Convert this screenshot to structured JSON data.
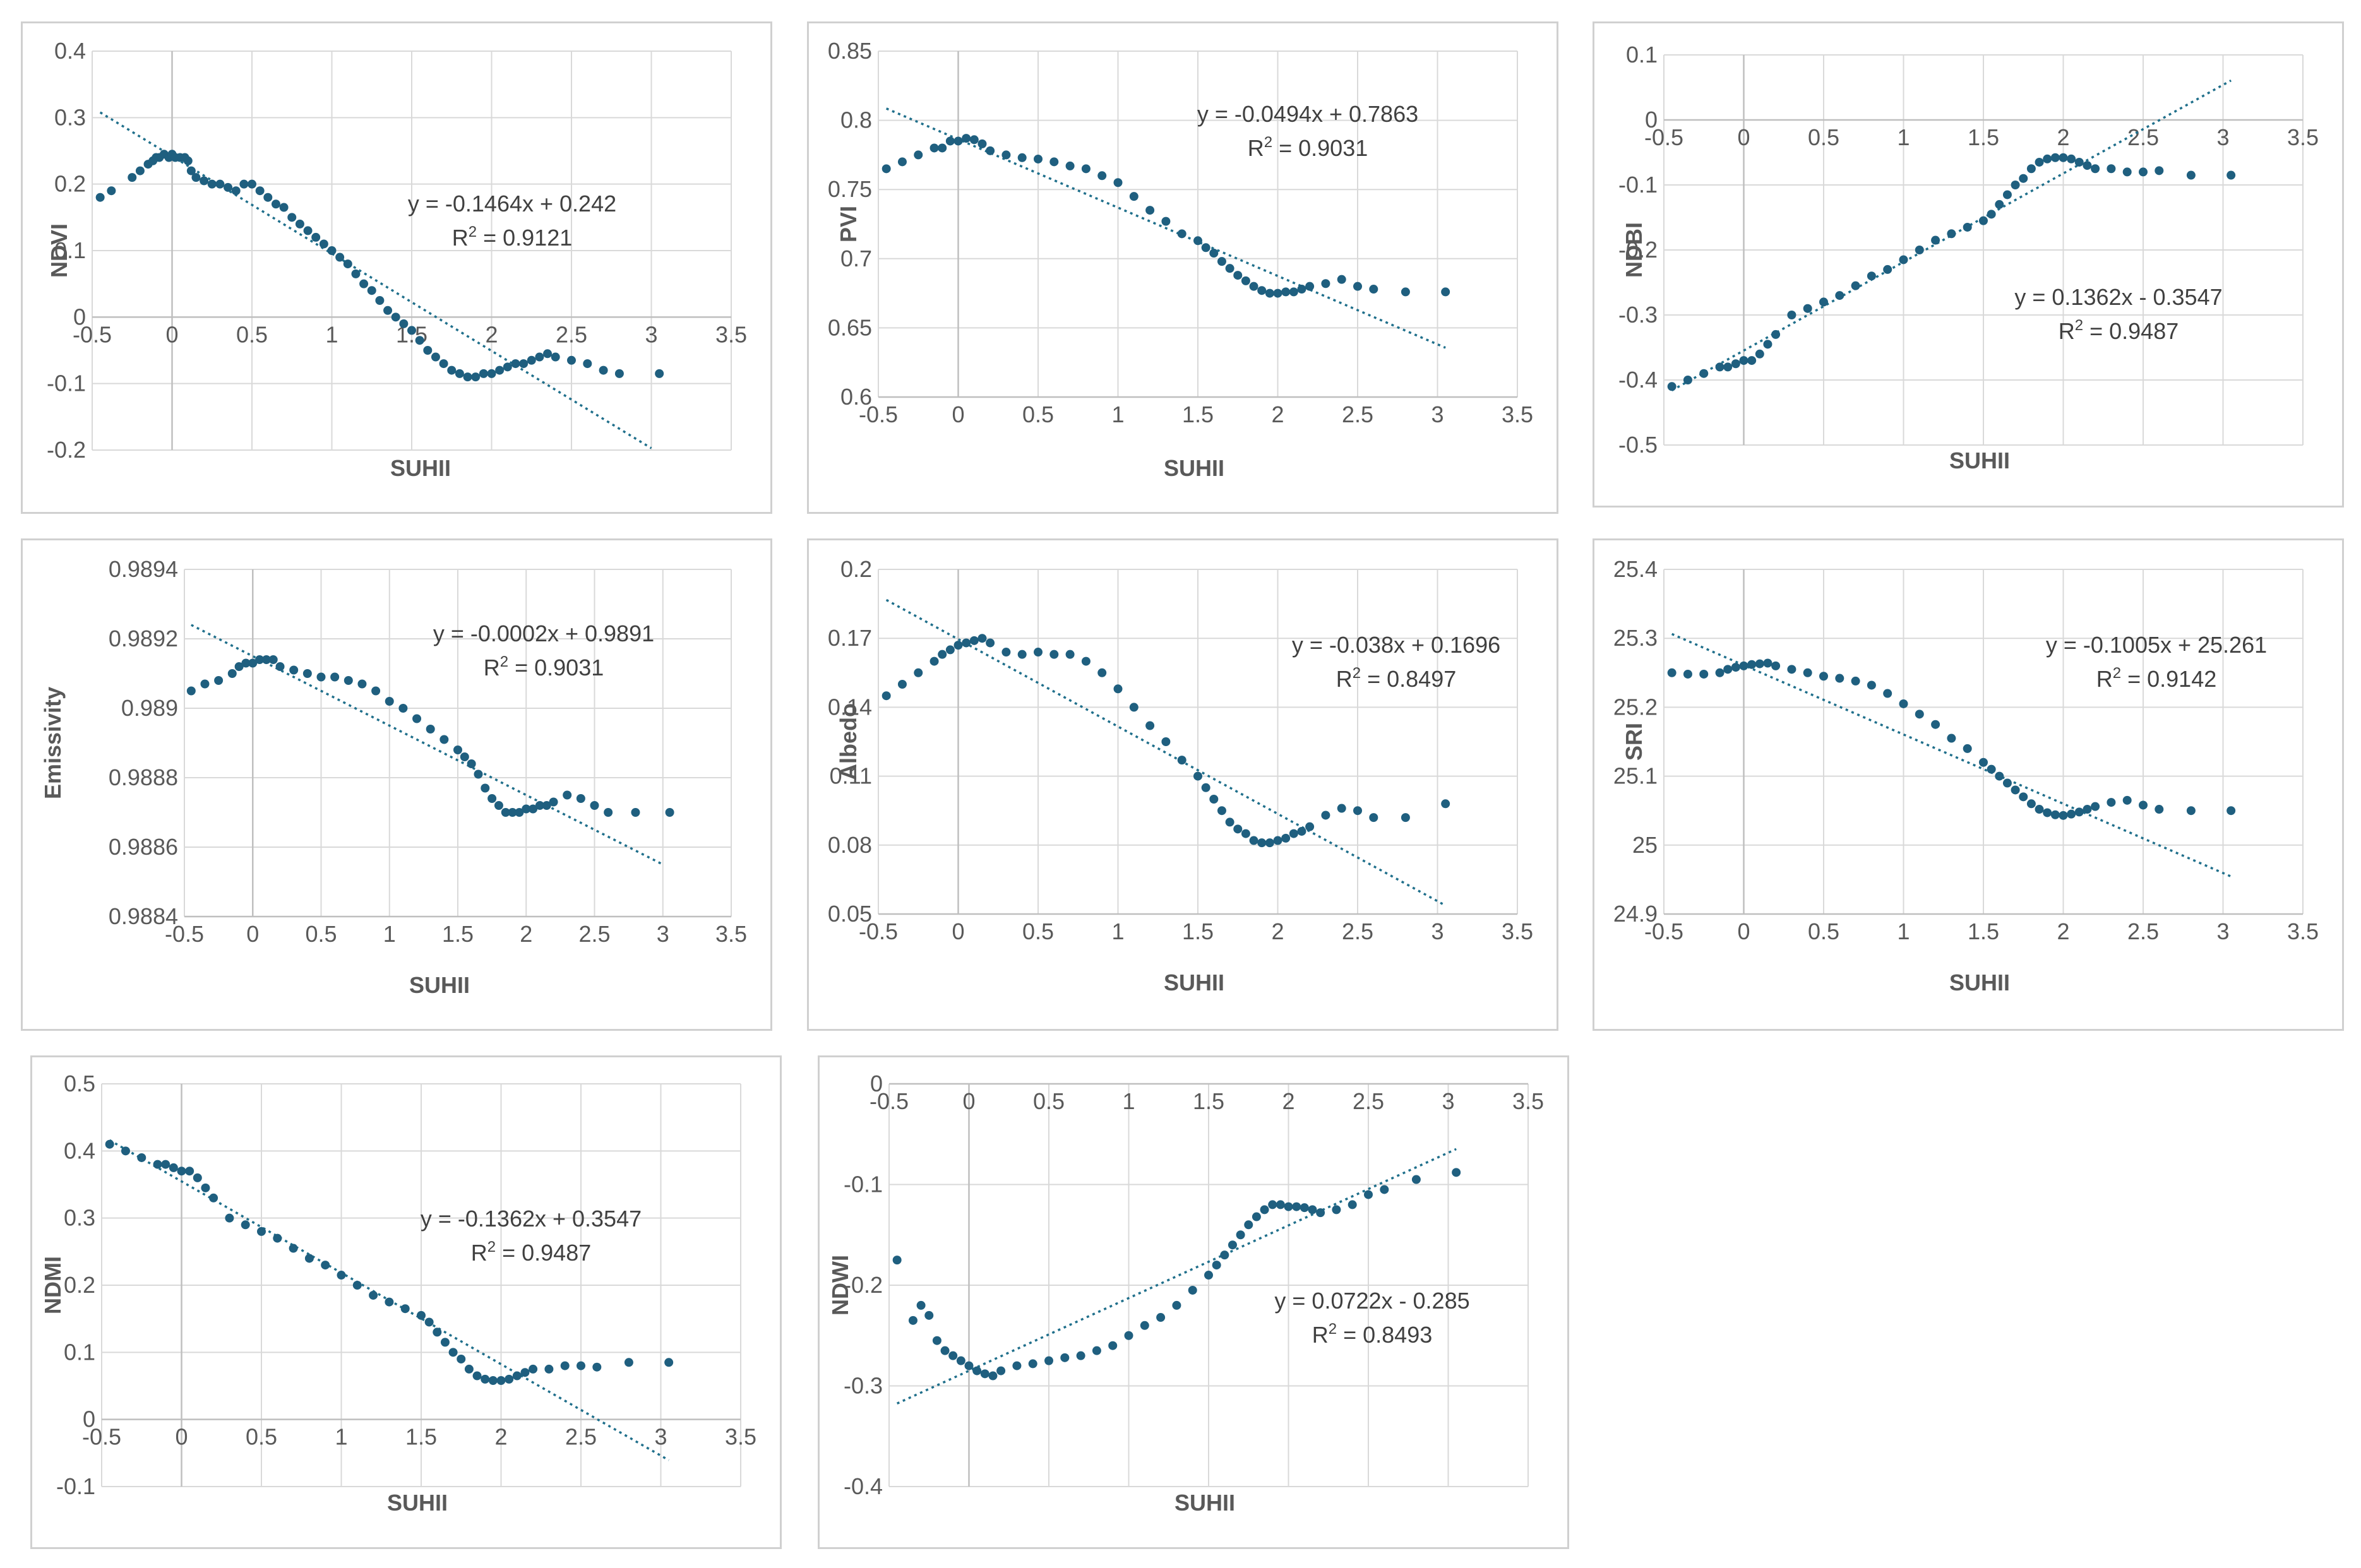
{
  "chart_data": [
    {
      "id": "ndvi",
      "type": "scatter",
      "xlabel": "SUHII",
      "ylabel": "NDVI",
      "xlim": [
        -0.5,
        3.5
      ],
      "xticks": [
        "-0.5",
        "0",
        "0.5",
        "1",
        "1.5",
        "2",
        "2.5",
        "3",
        "3.5"
      ],
      "ylim": [
        -0.2,
        0.4
      ],
      "yticks": [
        "-0.2",
        "-0.1",
        "0",
        "0.1",
        "0.2",
        "0.3",
        "0.4"
      ],
      "grid": true,
      "trendline": {
        "slope": -0.1464,
        "intercept": 0.242,
        "x_start": -0.45,
        "x_end": 3.0
      },
      "equation": "y = -0.1464x + 0.242",
      "r2_label": "R",
      "r2_value": " = 0.9121",
      "x": [
        -0.45,
        -0.38,
        -0.25,
        -0.2,
        -0.15,
        -0.12,
        -0.1,
        -0.08,
        -0.05,
        -0.02,
        0.0,
        0.02,
        0.05,
        0.08,
        0.1,
        0.12,
        0.15,
        0.2,
        0.25,
        0.3,
        0.35,
        0.4,
        0.45,
        0.5,
        0.55,
        0.6,
        0.65,
        0.7,
        0.75,
        0.8,
        0.85,
        0.9,
        0.95,
        1.0,
        1.05,
        1.1,
        1.15,
        1.2,
        1.25,
        1.3,
        1.35,
        1.4,
        1.45,
        1.5,
        1.55,
        1.6,
        1.65,
        1.7,
        1.75,
        1.8,
        1.85,
        1.9,
        1.95,
        2.0,
        2.05,
        2.1,
        2.15,
        2.2,
        2.25,
        2.3,
        2.35,
        2.4,
        2.5,
        2.6,
        2.7,
        2.8,
        3.05
      ],
      "y": [
        0.18,
        0.19,
        0.21,
        0.22,
        0.23,
        0.235,
        0.24,
        0.24,
        0.245,
        0.24,
        0.245,
        0.24,
        0.24,
        0.24,
        0.235,
        0.22,
        0.21,
        0.205,
        0.2,
        0.2,
        0.195,
        0.19,
        0.2,
        0.2,
        0.19,
        0.18,
        0.17,
        0.165,
        0.15,
        0.14,
        0.13,
        0.12,
        0.11,
        0.1,
        0.09,
        0.08,
        0.065,
        0.05,
        0.04,
        0.025,
        0.01,
        0.0,
        -0.01,
        -0.02,
        -0.035,
        -0.05,
        -0.06,
        -0.07,
        -0.08,
        -0.085,
        -0.09,
        -0.09,
        -0.085,
        -0.085,
        -0.08,
        -0.075,
        -0.07,
        -0.07,
        -0.065,
        -0.06,
        -0.055,
        -0.06,
        -0.065,
        -0.07,
        -0.08,
        -0.085,
        -0.085
      ]
    },
    {
      "id": "pvi",
      "type": "scatter",
      "xlabel": "SUHII",
      "ylabel": "PVI",
      "xlim": [
        -0.5,
        3.5
      ],
      "xticks": [
        "-0.5",
        "0",
        "0.5",
        "1",
        "1.5",
        "2",
        "2.5",
        "3",
        "3.5"
      ],
      "ylim": [
        0.6,
        0.85
      ],
      "yticks": [
        "0.6",
        "0.65",
        "0.7",
        "0.75",
        "0.8",
        "0.85"
      ],
      "grid": true,
      "trendline": {
        "slope": -0.0494,
        "intercept": 0.7863,
        "x_start": -0.45,
        "x_end": 3.05
      },
      "equation": "y = -0.0494x + 0.7863",
      "r2_label": "R",
      "r2_value": " = 0.9031",
      "x": [
        -0.45,
        -0.35,
        -0.25,
        -0.15,
        -0.1,
        -0.05,
        0.0,
        0.05,
        0.1,
        0.15,
        0.2,
        0.3,
        0.4,
        0.5,
        0.6,
        0.7,
        0.8,
        0.9,
        1.0,
        1.1,
        1.2,
        1.3,
        1.4,
        1.5,
        1.55,
        1.6,
        1.65,
        1.7,
        1.75,
        1.8,
        1.85,
        1.9,
        1.95,
        2.0,
        2.05,
        2.1,
        2.15,
        2.2,
        2.3,
        2.4,
        2.5,
        2.6,
        2.8,
        3.05
      ],
      "y": [
        0.765,
        0.77,
        0.775,
        0.78,
        0.78,
        0.785,
        0.785,
        0.787,
        0.786,
        0.783,
        0.778,
        0.775,
        0.773,
        0.772,
        0.77,
        0.767,
        0.765,
        0.76,
        0.755,
        0.745,
        0.735,
        0.727,
        0.718,
        0.713,
        0.708,
        0.704,
        0.698,
        0.693,
        0.688,
        0.684,
        0.68,
        0.677,
        0.675,
        0.675,
        0.676,
        0.676,
        0.678,
        0.68,
        0.682,
        0.685,
        0.68,
        0.678,
        0.676,
        0.676
      ]
    },
    {
      "id": "ndbi",
      "type": "scatter",
      "xlabel": "SUHII",
      "ylabel": "NDBI",
      "xlim": [
        -0.5,
        3.5
      ],
      "xticks": [
        "-0.5",
        "0",
        "0.5",
        "1",
        "1.5",
        "2",
        "2.5",
        "3",
        "3.5"
      ],
      "ylim": [
        -0.5,
        0.1
      ],
      "yticks": [
        "-0.5",
        "-0.4",
        "-0.3",
        "-0.2",
        "-0.1",
        "0",
        "0.1"
      ],
      "grid": true,
      "trendline": {
        "slope": 0.1362,
        "intercept": -0.3547,
        "x_start": -0.45,
        "x_end": 3.05
      },
      "equation": "y = 0.1362x - 0.3547",
      "r2_label": "R",
      "r2_value": " = 0.9487",
      "x": [
        -0.45,
        -0.35,
        -0.25,
        -0.15,
        -0.1,
        -0.05,
        0.0,
        0.05,
        0.1,
        0.15,
        0.2,
        0.3,
        0.4,
        0.5,
        0.6,
        0.7,
        0.8,
        0.9,
        1.0,
        1.1,
        1.2,
        1.3,
        1.4,
        1.5,
        1.55,
        1.6,
        1.65,
        1.7,
        1.75,
        1.8,
        1.85,
        1.9,
        1.95,
        2.0,
        2.05,
        2.1,
        2.15,
        2.2,
        2.3,
        2.4,
        2.5,
        2.6,
        2.8,
        3.05
      ],
      "y": [
        -0.41,
        -0.4,
        -0.39,
        -0.38,
        -0.38,
        -0.375,
        -0.37,
        -0.37,
        -0.36,
        -0.345,
        -0.33,
        -0.3,
        -0.29,
        -0.28,
        -0.27,
        -0.255,
        -0.24,
        -0.23,
        -0.215,
        -0.2,
        -0.185,
        -0.175,
        -0.165,
        -0.155,
        -0.145,
        -0.13,
        -0.115,
        -0.1,
        -0.09,
        -0.075,
        -0.065,
        -0.06,
        -0.058,
        -0.058,
        -0.06,
        -0.065,
        -0.07,
        -0.075,
        -0.075,
        -0.08,
        -0.08,
        -0.078,
        -0.085,
        -0.085
      ]
    },
    {
      "id": "emissivity",
      "type": "scatter",
      "xlabel": "SUHII",
      "ylabel": "Emissivity",
      "xlim": [
        -0.5,
        3.5
      ],
      "xticks": [
        "-0.5",
        "0",
        "0.5",
        "1",
        "1.5",
        "2",
        "2.5",
        "3",
        "3.5"
      ],
      "ylim": [
        0.9884,
        0.9894
      ],
      "yticks": [
        "0.9884",
        "0.9886",
        "0.9888",
        "0.989",
        "0.9892",
        "0.9894"
      ],
      "grid": true,
      "trendline": {
        "slope": -0.0002,
        "intercept": 0.98915,
        "x_start": -0.45,
        "x_end": 3.0
      },
      "equation": "y = -0.0002x + 0.9891",
      "r2_label": "R",
      "r2_value": " = 0.9031",
      "x": [
        -0.45,
        -0.35,
        -0.25,
        -0.15,
        -0.1,
        -0.05,
        0.0,
        0.05,
        0.1,
        0.15,
        0.2,
        0.3,
        0.4,
        0.5,
        0.6,
        0.7,
        0.8,
        0.9,
        1.0,
        1.1,
        1.2,
        1.3,
        1.4,
        1.5,
        1.55,
        1.6,
        1.65,
        1.7,
        1.75,
        1.8,
        1.85,
        1.9,
        1.95,
        2.0,
        2.05,
        2.1,
        2.15,
        2.2,
        2.3,
        2.4,
        2.5,
        2.6,
        2.8,
        3.05
      ],
      "y": [
        0.98905,
        0.98907,
        0.98908,
        0.9891,
        0.98912,
        0.98913,
        0.98913,
        0.98914,
        0.98914,
        0.98914,
        0.98912,
        0.98911,
        0.9891,
        0.98909,
        0.98909,
        0.98908,
        0.98907,
        0.98905,
        0.98902,
        0.989,
        0.98897,
        0.98894,
        0.98891,
        0.98888,
        0.98886,
        0.98884,
        0.98881,
        0.98877,
        0.98874,
        0.98872,
        0.9887,
        0.9887,
        0.9887,
        0.98871,
        0.98871,
        0.98872,
        0.98872,
        0.98873,
        0.98875,
        0.98874,
        0.98872,
        0.9887,
        0.9887,
        0.9887
      ]
    },
    {
      "id": "albedo",
      "type": "scatter",
      "xlabel": "SUHII",
      "ylabel": "Albedo",
      "xlim": [
        -0.5,
        3.5
      ],
      "xticks": [
        "-0.5",
        "0",
        "0.5",
        "1",
        "1.5",
        "2",
        "2.5",
        "3",
        "3.5"
      ],
      "ylim": [
        0.05,
        0.2
      ],
      "yticks": [
        "0.05",
        "0.08",
        "0.11",
        "0.14",
        "0.17",
        "0.2"
      ],
      "grid": true,
      "trendline": {
        "slope": -0.038,
        "intercept": 0.1696,
        "x_start": -0.45,
        "x_end": 3.05
      },
      "equation": "y = -0.038x + 0.1696",
      "r2_label": "R",
      "r2_value": " = 0.8497",
      "x": [
        -0.45,
        -0.35,
        -0.25,
        -0.15,
        -0.1,
        -0.05,
        0.0,
        0.05,
        0.1,
        0.15,
        0.2,
        0.3,
        0.4,
        0.5,
        0.6,
        0.7,
        0.8,
        0.9,
        1.0,
        1.1,
        1.2,
        1.3,
        1.4,
        1.5,
        1.55,
        1.6,
        1.65,
        1.7,
        1.75,
        1.8,
        1.85,
        1.9,
        1.95,
        2.0,
        2.05,
        2.1,
        2.15,
        2.2,
        2.3,
        2.4,
        2.5,
        2.6,
        2.8,
        3.05
      ],
      "y": [
        0.145,
        0.15,
        0.155,
        0.16,
        0.163,
        0.165,
        0.167,
        0.168,
        0.169,
        0.17,
        0.168,
        0.164,
        0.163,
        0.164,
        0.163,
        0.163,
        0.16,
        0.155,
        0.148,
        0.14,
        0.132,
        0.125,
        0.117,
        0.11,
        0.105,
        0.1,
        0.095,
        0.09,
        0.087,
        0.085,
        0.082,
        0.081,
        0.081,
        0.082,
        0.083,
        0.085,
        0.086,
        0.088,
        0.093,
        0.096,
        0.095,
        0.092,
        0.092,
        0.098
      ]
    },
    {
      "id": "sri",
      "type": "scatter",
      "xlabel": "SUHII",
      "ylabel": "SRI",
      "xlim": [
        -0.5,
        3.5
      ],
      "xticks": [
        "-0.5",
        "0",
        "0.5",
        "1",
        "1.5",
        "2",
        "2.5",
        "3",
        "3.5"
      ],
      "ylim": [
        24.9,
        25.4
      ],
      "yticks": [
        "24.9",
        "25",
        "25.1",
        "25.2",
        "25.3",
        "25.4"
      ],
      "grid": true,
      "trendline": {
        "slope": -0.1005,
        "intercept": 25.261,
        "x_start": -0.45,
        "x_end": 3.05
      },
      "equation": "y = -0.1005x + 25.261",
      "r2_label": "R",
      "r2_value": " = 0.9142",
      "x": [
        -0.45,
        -0.35,
        -0.25,
        -0.15,
        -0.1,
        -0.05,
        0.0,
        0.05,
        0.1,
        0.15,
        0.2,
        0.3,
        0.4,
        0.5,
        0.6,
        0.7,
        0.8,
        0.9,
        1.0,
        1.1,
        1.2,
        1.3,
        1.4,
        1.5,
        1.55,
        1.6,
        1.65,
        1.7,
        1.75,
        1.8,
        1.85,
        1.9,
        1.95,
        2.0,
        2.05,
        2.1,
        2.15,
        2.2,
        2.3,
        2.4,
        2.5,
        2.6,
        2.8,
        3.05
      ],
      "y": [
        25.25,
        25.248,
        25.248,
        25.25,
        25.255,
        25.258,
        25.26,
        25.262,
        25.263,
        25.264,
        25.26,
        25.255,
        25.25,
        25.245,
        25.242,
        25.238,
        25.232,
        25.22,
        25.205,
        25.19,
        25.175,
        25.155,
        25.14,
        25.12,
        25.11,
        25.1,
        25.09,
        25.08,
        25.07,
        25.06,
        25.052,
        25.047,
        25.044,
        25.043,
        25.045,
        25.048,
        25.052,
        25.056,
        25.062,
        25.065,
        25.058,
        25.052,
        25.05,
        25.05
      ]
    },
    {
      "id": "ndmi",
      "type": "scatter",
      "xlabel": "SUHII",
      "ylabel": "NDMI",
      "xlim": [
        -0.5,
        3.5
      ],
      "xticks": [
        "-0.5",
        "0",
        "0.5",
        "1",
        "1.5",
        "2",
        "2.5",
        "3",
        "3.5"
      ],
      "ylim": [
        -0.1,
        0.5
      ],
      "yticks": [
        "-0.1",
        "0",
        "0.1",
        "0.2",
        "0.3",
        "0.4",
        "0.5"
      ],
      "grid": true,
      "trendline": {
        "slope": -0.1362,
        "intercept": 0.3547,
        "x_start": -0.45,
        "x_end": 3.05
      },
      "equation": "y = -0.1362x + 0.3547",
      "r2_label": "R",
      "r2_value": " = 0.9487",
      "x": [
        -0.45,
        -0.35,
        -0.25,
        -0.15,
        -0.1,
        -0.05,
        0.0,
        0.05,
        0.1,
        0.15,
        0.2,
        0.3,
        0.4,
        0.5,
        0.6,
        0.7,
        0.8,
        0.9,
        1.0,
        1.1,
        1.2,
        1.3,
        1.4,
        1.5,
        1.55,
        1.6,
        1.65,
        1.7,
        1.75,
        1.8,
        1.85,
        1.9,
        1.95,
        2.0,
        2.05,
        2.1,
        2.15,
        2.2,
        2.3,
        2.4,
        2.5,
        2.6,
        2.8,
        3.05
      ],
      "y": [
        0.41,
        0.4,
        0.39,
        0.38,
        0.38,
        0.375,
        0.37,
        0.37,
        0.36,
        0.345,
        0.33,
        0.3,
        0.29,
        0.28,
        0.27,
        0.255,
        0.24,
        0.23,
        0.215,
        0.2,
        0.185,
        0.175,
        0.165,
        0.155,
        0.145,
        0.13,
        0.115,
        0.1,
        0.09,
        0.075,
        0.065,
        0.06,
        0.058,
        0.058,
        0.06,
        0.065,
        0.07,
        0.075,
        0.075,
        0.08,
        0.08,
        0.078,
        0.085,
        0.085
      ]
    },
    {
      "id": "ndwi",
      "type": "scatter",
      "xlabel": "SUHII",
      "ylabel": "NDWI",
      "xlim": [
        -0.5,
        3.5
      ],
      "xticks": [
        "-0.5",
        "0",
        "0.5",
        "1",
        "1.5",
        "2",
        "2.5",
        "3",
        "3.5"
      ],
      "ylim": [
        -0.4,
        0
      ],
      "yticks": [
        "-0.4",
        "-0.3",
        "-0.2",
        "-0.1",
        "0"
      ],
      "grid": true,
      "trendline": {
        "slope": 0.0722,
        "intercept": -0.285,
        "x_start": -0.45,
        "x_end": 3.05
      },
      "equation": "y = 0.0722x - 0.285",
      "r2_label": "R",
      "r2_value": " = 0.8493",
      "x": [
        -0.45,
        -0.35,
        -0.3,
        -0.25,
        -0.2,
        -0.15,
        -0.1,
        -0.05,
        0.0,
        0.05,
        0.1,
        0.15,
        0.2,
        0.3,
        0.4,
        0.5,
        0.6,
        0.7,
        0.8,
        0.9,
        1.0,
        1.1,
        1.2,
        1.3,
        1.4,
        1.5,
        1.55,
        1.6,
        1.65,
        1.7,
        1.75,
        1.8,
        1.85,
        1.9,
        1.95,
        2.0,
        2.05,
        2.1,
        2.15,
        2.2,
        2.3,
        2.4,
        2.5,
        2.6,
        2.8,
        3.05
      ],
      "y": [
        -0.175,
        -0.235,
        -0.22,
        -0.23,
        -0.255,
        -0.265,
        -0.27,
        -0.275,
        -0.28,
        -0.285,
        -0.288,
        -0.29,
        -0.285,
        -0.28,
        -0.278,
        -0.275,
        -0.272,
        -0.27,
        -0.265,
        -0.26,
        -0.25,
        -0.24,
        -0.232,
        -0.22,
        -0.205,
        -0.19,
        -0.18,
        -0.17,
        -0.16,
        -0.15,
        -0.14,
        -0.132,
        -0.125,
        -0.12,
        -0.12,
        -0.122,
        -0.122,
        -0.123,
        -0.125,
        -0.128,
        -0.125,
        -0.12,
        -0.11,
        -0.105,
        -0.095,
        -0.088
      ]
    }
  ]
}
